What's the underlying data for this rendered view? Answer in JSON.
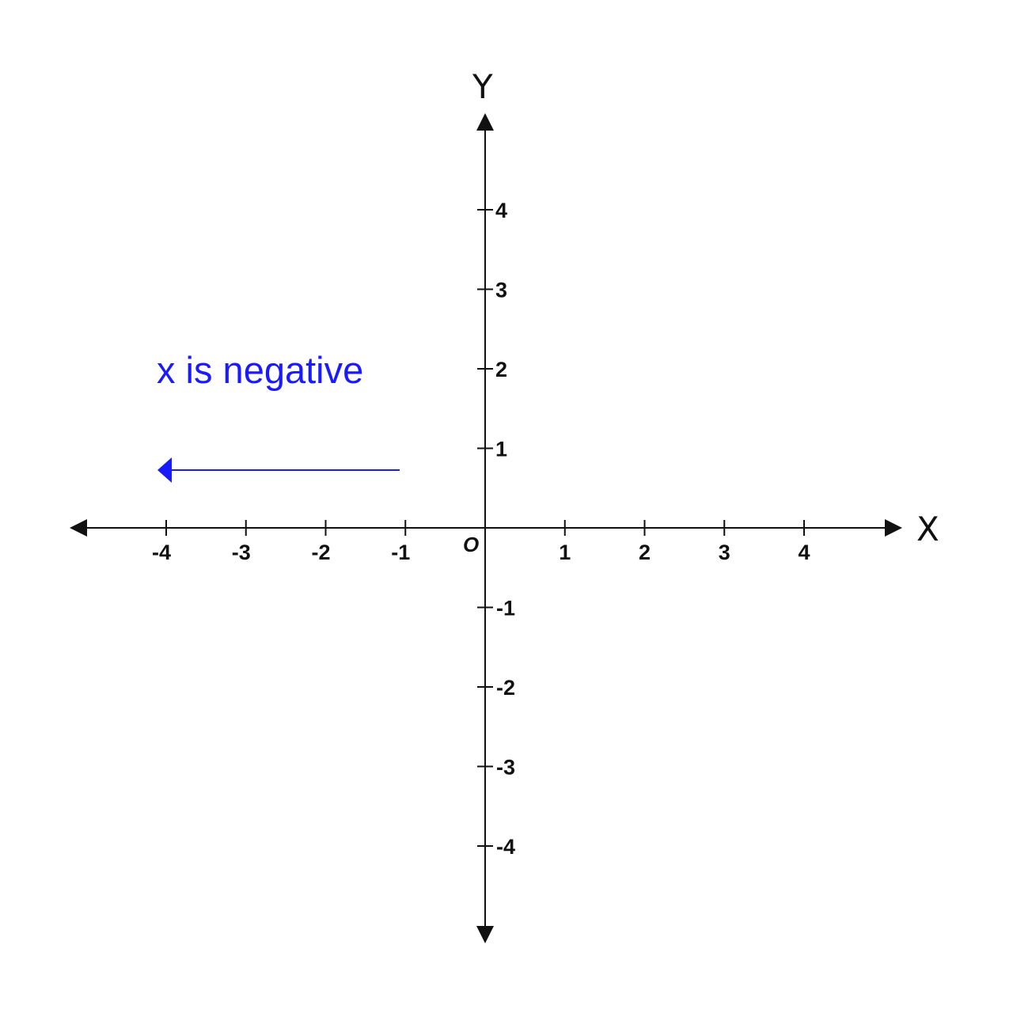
{
  "axes": {
    "x_name": "X",
    "y_name": "Y",
    "origin_label": "O",
    "range": [
      -4,
      4
    ],
    "x_ticks": [
      {
        "value": -4,
        "label": "-4"
      },
      {
        "value": -3,
        "label": "-3"
      },
      {
        "value": -2,
        "label": "-2"
      },
      {
        "value": -1,
        "label": "-1"
      },
      {
        "value": 1,
        "label": "1"
      },
      {
        "value": 2,
        "label": "2"
      },
      {
        "value": 3,
        "label": "3"
      },
      {
        "value": 4,
        "label": "4"
      }
    ],
    "y_ticks": [
      {
        "value": 4,
        "label": "4"
      },
      {
        "value": 3,
        "label": "3"
      },
      {
        "value": 2,
        "label": "2"
      },
      {
        "value": 1,
        "label": "1"
      },
      {
        "value": -1,
        "label": "-1"
      },
      {
        "value": -2,
        "label": "-2"
      },
      {
        "value": -3,
        "label": "-3"
      },
      {
        "value": -4,
        "label": "-4"
      }
    ]
  },
  "annotation": {
    "text": "x is negative",
    "direction": "left",
    "color": "#1a1aff"
  },
  "colors": {
    "axis": "#111111",
    "background": "#ffffff"
  }
}
